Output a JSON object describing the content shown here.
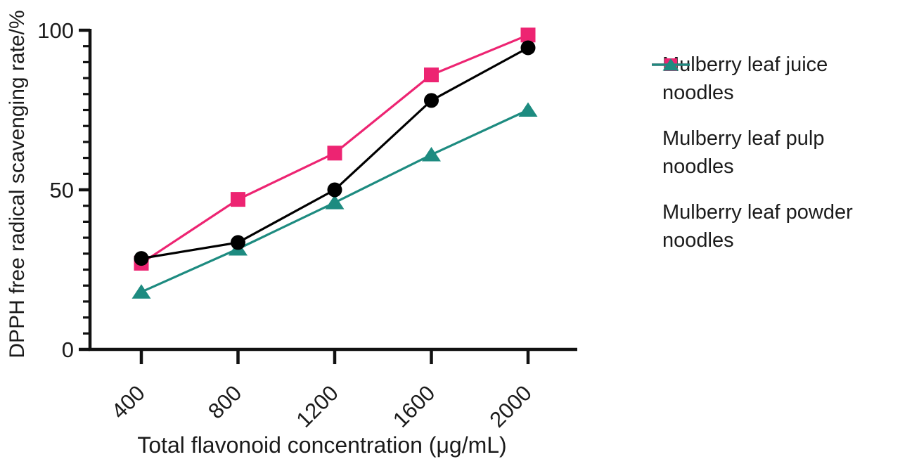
{
  "chart_data": {
    "type": "line",
    "title": "",
    "xlabel": "Total flavonoid concentration (μg/mL)",
    "ylabel": "DPPH free radical scavenging rate/%",
    "categories": [
      400,
      800,
      1200,
      1600,
      2000
    ],
    "series": [
      {
        "name": "Mulberry leaf juice noodles",
        "marker": "circle",
        "color": "#000000",
        "values": [
          28.5,
          33.5,
          50,
          78,
          94.5
        ]
      },
      {
        "name": "Mulberry leaf pulp noodles",
        "marker": "square",
        "color": "#ED2472",
        "values": [
          27,
          47,
          61.5,
          86,
          98.5
        ]
      },
      {
        "name": "Mulberry leaf powder noodles",
        "marker": "triangle",
        "color": "#1D8B80",
        "values": [
          18,
          31.5,
          46,
          61,
          75
        ]
      }
    ],
    "ylim": [
      0,
      100
    ],
    "y_major_ticks": [
      0,
      50,
      100
    ],
    "y_minor_tick_step": 5,
    "grid": false,
    "legend_position": "right",
    "draw_order": [
      1,
      2,
      0
    ],
    "axis_color": "#111111",
    "text_color": "#1b1b1b"
  }
}
